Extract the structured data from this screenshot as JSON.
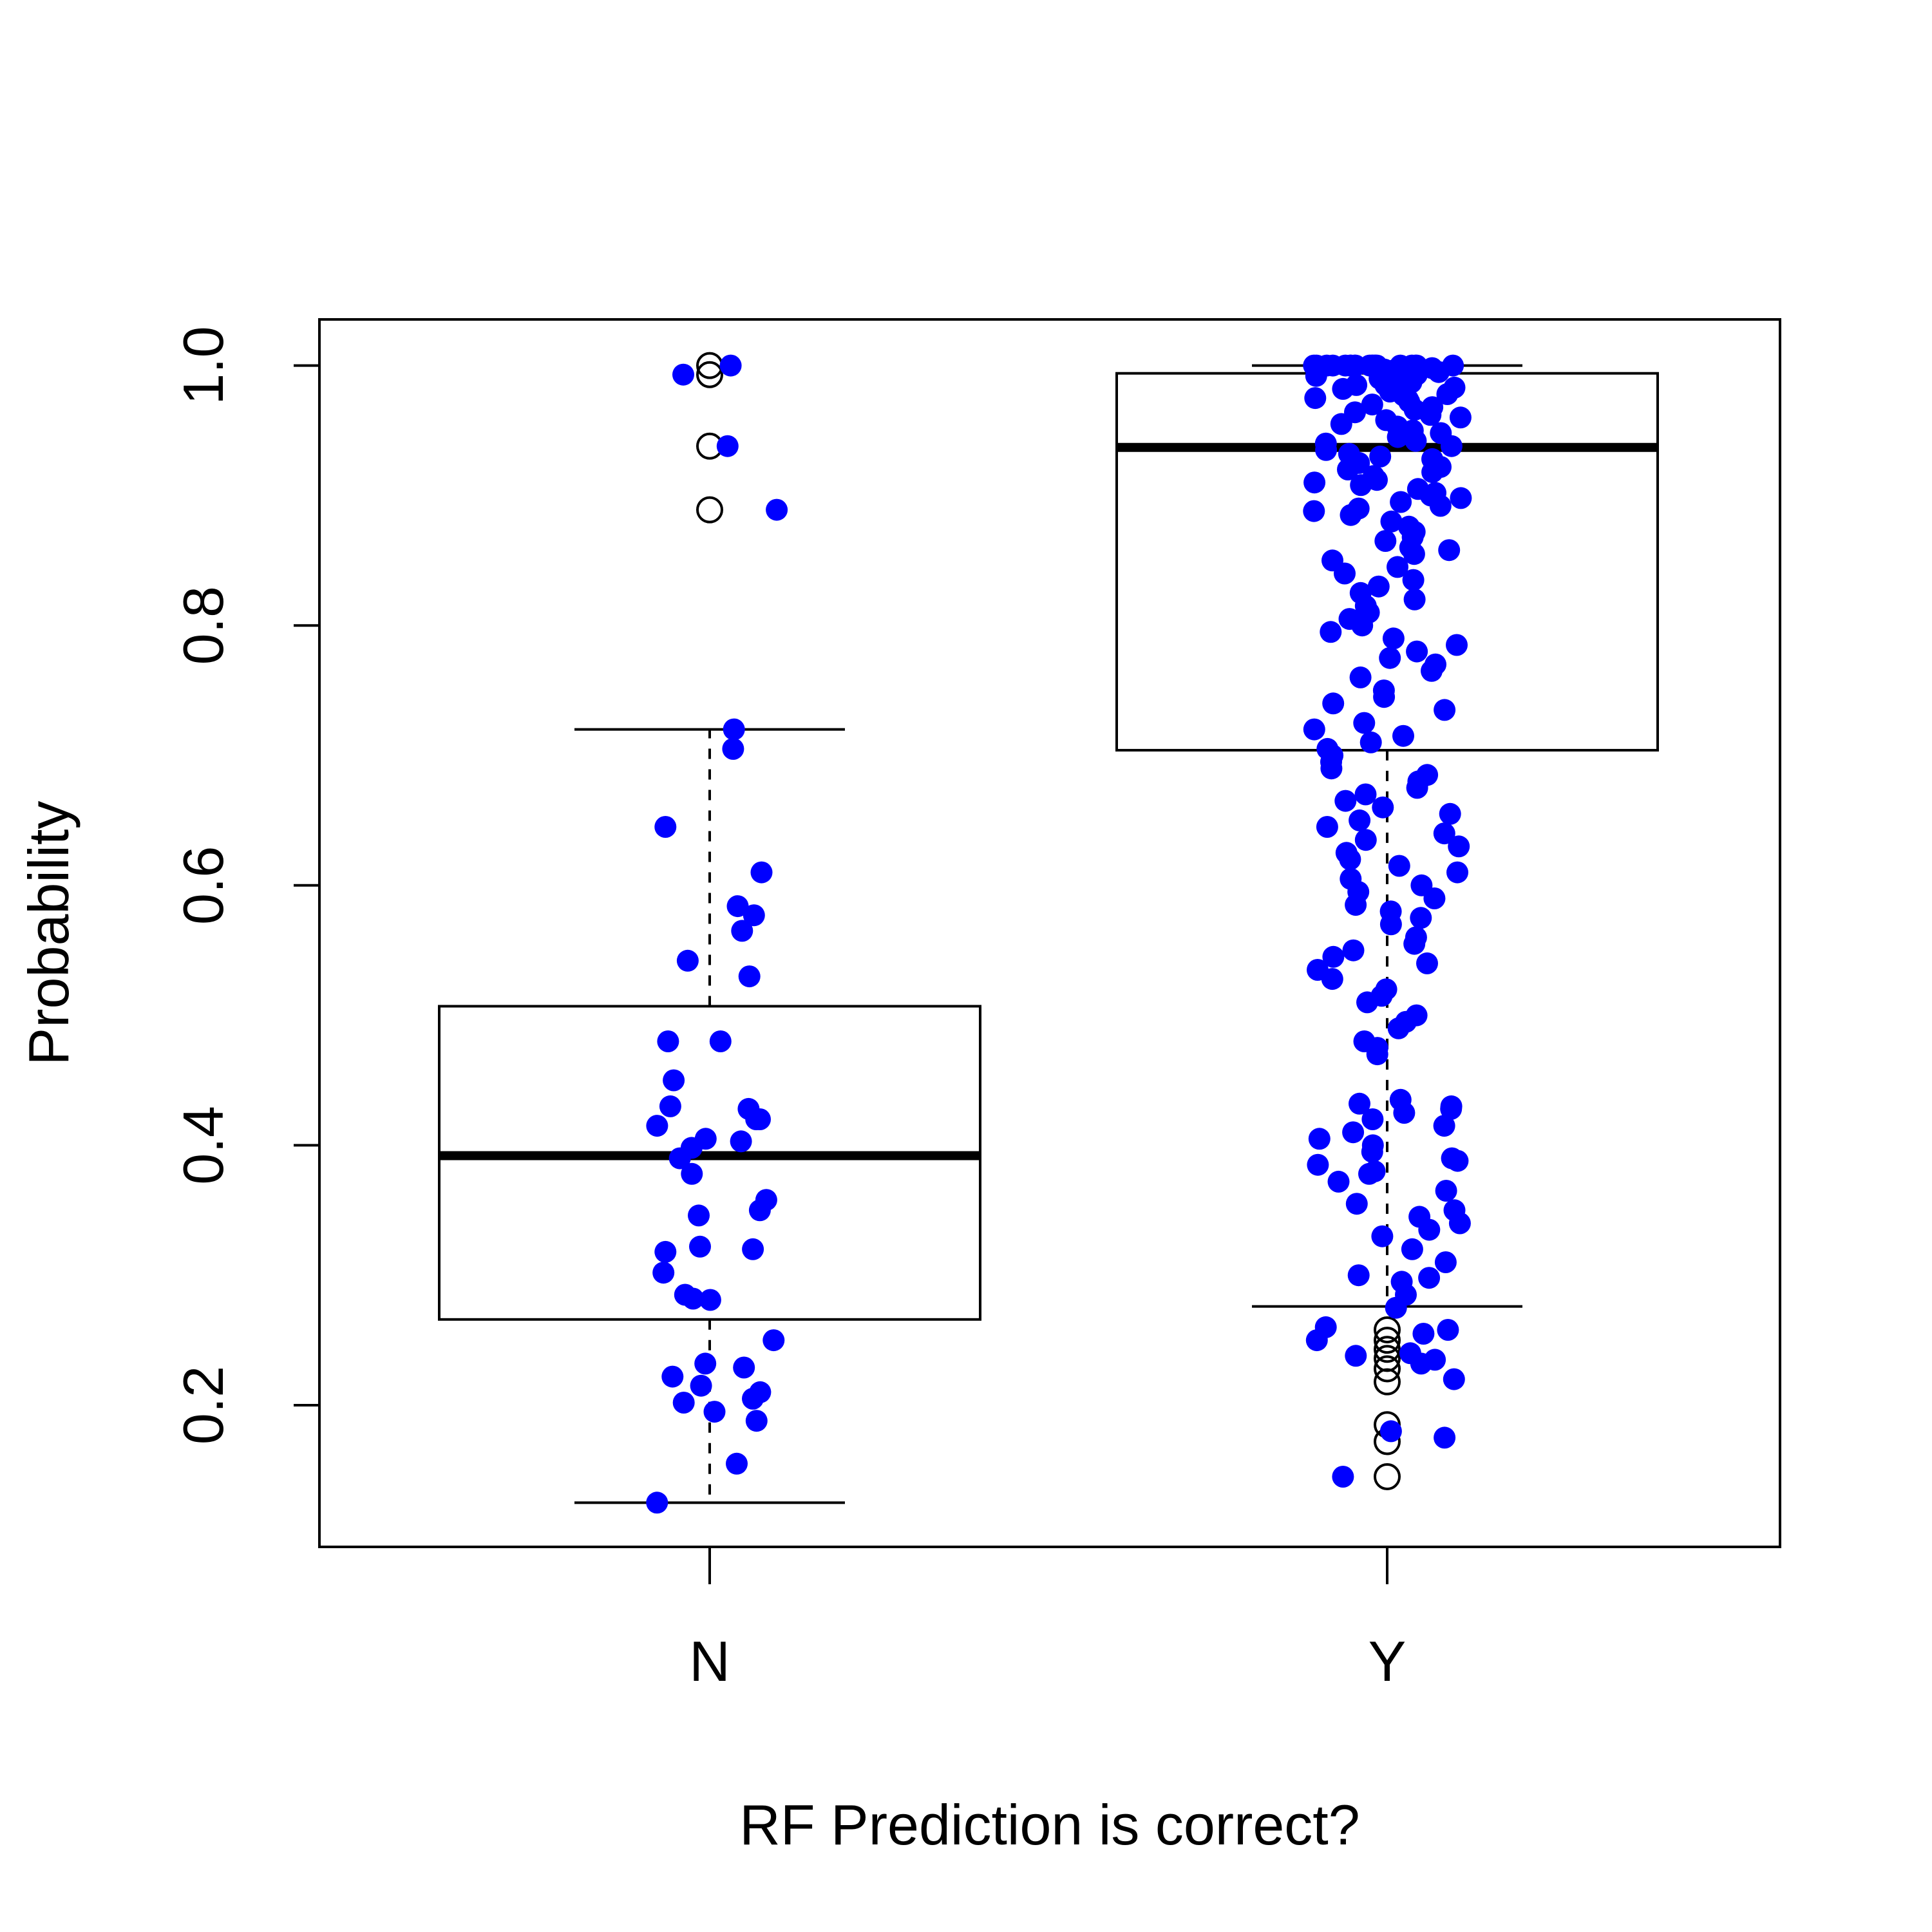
{
  "chart_data": {
    "type": "boxplot",
    "title": "",
    "xlabel": "RF Prediction is correct?",
    "ylabel": "Probability",
    "categories": [
      "N",
      "Y"
    ],
    "ylim": [
      0.1,
      1.0
    ],
    "yticks": [
      "0.2",
      "0.4",
      "0.6",
      "0.8",
      "1.0"
    ],
    "ytick_values": [
      0.2,
      0.4,
      0.6,
      0.8,
      1.0
    ],
    "grid": false,
    "legend": "none",
    "colors": {
      "points": "#0000ff",
      "box": "#000000",
      "outlier": "#000000"
    },
    "boxes": [
      {
        "category": "N",
        "lower_whisker": 0.125,
        "q1": 0.266,
        "median": 0.392,
        "q3": 0.507,
        "upper_whisker": 0.72,
        "outliers": [
          1.0,
          0.993,
          0.938,
          0.889
        ]
      },
      {
        "category": "Y",
        "lower_whisker": 0.276,
        "q1": 0.704,
        "median": 0.937,
        "q3": 0.994,
        "upper_whisker": 1.0,
        "outliers": [
          0.258,
          0.25,
          0.243,
          0.236,
          0.228,
          0.218,
          0.185,
          0.172,
          0.145
        ]
      }
    ],
    "points": [
      {
        "category": "N",
        "values": [
          1.0,
          0.993,
          0.938,
          0.889,
          0.72,
          0.705,
          0.645,
          0.61,
          0.584,
          0.577,
          0.565,
          0.542,
          0.53,
          0.48,
          0.48,
          0.45,
          0.43,
          0.428,
          0.42,
          0.42,
          0.415,
          0.405,
          0.403,
          0.398,
          0.39,
          0.378,
          0.358,
          0.35,
          0.346,
          0.322,
          0.32,
          0.318,
          0.302,
          0.285,
          0.282,
          0.281,
          0.25,
          0.232,
          0.229,
          0.222,
          0.215,
          0.21,
          0.205,
          0.202,
          0.195,
          0.188,
          0.155,
          0.125
        ]
      },
      {
        "category": "Y",
        "values": [
          1.0,
          1.0,
          1.0,
          1.0,
          1.0,
          1.0,
          1.0,
          1.0,
          1.0,
          1.0,
          1.0,
          1.0,
          1.0,
          1.0,
          1.0,
          1.0,
          1.0,
          1.0,
          1.0,
          1.0,
          0.998,
          0.997,
          0.996,
          0.995,
          0.994,
          0.993,
          0.992,
          0.99,
          0.99,
          0.988,
          0.987,
          0.985,
          0.985,
          0.983,
          0.982,
          0.98,
          0.978,
          0.977,
          0.975,
          0.974,
          0.972,
          0.97,
          0.968,
          0.966,
          0.964,
          0.962,
          0.96,
          0.958,
          0.955,
          0.953,
          0.95,
          0.948,
          0.945,
          0.942,
          0.94,
          0.938,
          0.935,
          0.932,
          0.93,
          0.928,
          0.925,
          0.922,
          0.92,
          0.918,
          0.915,
          0.912,
          0.91,
          0.908,
          0.905,
          0.902,
          0.9,
          0.898,
          0.895,
          0.892,
          0.89,
          0.888,
          0.885,
          0.88,
          0.876,
          0.872,
          0.868,
          0.865,
          0.86,
          0.858,
          0.855,
          0.85,
          0.845,
          0.84,
          0.835,
          0.83,
          0.825,
          0.82,
          0.815,
          0.81,
          0.805,
          0.8,
          0.795,
          0.79,
          0.785,
          0.78,
          0.775,
          0.77,
          0.765,
          0.76,
          0.75,
          0.745,
          0.74,
          0.735,
          0.725,
          0.72,
          0.715,
          0.71,
          0.705,
          0.7,
          0.695,
          0.69,
          0.685,
          0.68,
          0.675,
          0.67,
          0.665,
          0.66,
          0.655,
          0.65,
          0.645,
          0.64,
          0.635,
          0.63,
          0.625,
          0.62,
          0.615,
          0.61,
          0.605,
          0.6,
          0.595,
          0.59,
          0.585,
          0.58,
          0.575,
          0.57,
          0.56,
          0.555,
          0.55,
          0.545,
          0.54,
          0.535,
          0.528,
          0.52,
          0.515,
          0.51,
          0.5,
          0.495,
          0.49,
          0.48,
          0.475,
          0.47,
          0.435,
          0.432,
          0.43,
          0.428,
          0.425,
          0.42,
          0.415,
          0.41,
          0.405,
          0.4,
          0.395,
          0.39,
          0.388,
          0.385,
          0.38,
          0.378,
          0.372,
          0.365,
          0.355,
          0.35,
          0.345,
          0.34,
          0.335,
          0.33,
          0.32,
          0.31,
          0.3,
          0.298,
          0.295,
          0.285,
          0.275,
          0.26,
          0.258,
          0.255,
          0.25,
          0.24,
          0.238,
          0.235,
          0.232,
          0.22,
          0.18,
          0.175,
          0.145
        ]
      }
    ]
  }
}
